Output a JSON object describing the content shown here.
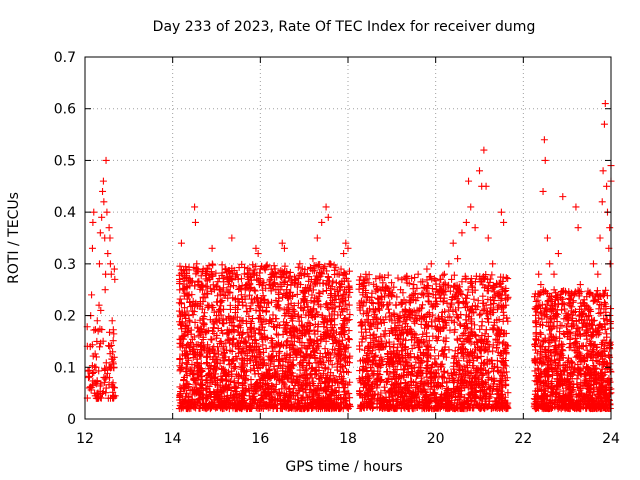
{
  "chart_data": {
    "type": "scatter",
    "title": "Day 233 of 2023, Rate Of TEC Index for receiver dumg",
    "xlabel": "GPS time / hours",
    "ylabel": "ROTI / TECUs",
    "xlim": [
      12,
      24
    ],
    "ylim": [
      0,
      0.7
    ],
    "xticks": [
      "12",
      "14",
      "16",
      "18",
      "20",
      "22",
      "24"
    ],
    "xtick_values": [
      12,
      14,
      16,
      18,
      20,
      22,
      24
    ],
    "yticks": [
      "0",
      "0.1",
      "0.2",
      "0.3",
      "0.4",
      "0.5",
      "0.6",
      "0.7"
    ],
    "ytick_values": [
      0,
      0.1,
      0.2,
      0.3,
      0.4,
      0.5,
      0.6,
      0.7
    ],
    "grid": true,
    "legend": "none",
    "marker": "plus",
    "color": "#ff0000",
    "series": [
      {
        "values": [
          [
            12.08,
            0.08
          ],
          [
            12.1,
            0.06
          ],
          [
            12.12,
            0.14
          ],
          [
            12.13,
            0.2
          ],
          [
            12.15,
            0.24
          ],
          [
            12.17,
            0.33
          ],
          [
            12.18,
            0.38
          ],
          [
            12.2,
            0.4
          ],
          [
            12.22,
            0.05
          ],
          [
            12.23,
            0.07
          ],
          [
            12.25,
            0.1
          ],
          [
            12.27,
            0.15
          ],
          [
            12.28,
            0.19
          ],
          [
            12.3,
            0.17
          ],
          [
            12.32,
            0.22
          ],
          [
            12.33,
            0.3
          ],
          [
            12.35,
            0.36
          ],
          [
            12.38,
            0.39
          ],
          [
            12.4,
            0.44
          ],
          [
            12.42,
            0.46
          ],
          [
            12.43,
            0.42
          ],
          [
            12.45,
            0.35
          ],
          [
            12.47,
            0.28
          ],
          [
            12.48,
            0.5
          ],
          [
            12.5,
            0.4
          ],
          [
            12.52,
            0.32
          ],
          [
            12.55,
            0.37
          ],
          [
            12.57,
            0.35
          ],
          [
            12.58,
            0.3
          ],
          [
            12.6,
            0.28
          ],
          [
            12.62,
            0.19
          ],
          [
            12.63,
            0.13
          ],
          [
            12.65,
            0.1
          ],
          [
            12.67,
            0.29
          ],
          [
            12.68,
            0.27
          ],
          [
            12.2,
            0.09
          ],
          [
            12.26,
            0.12
          ],
          [
            12.36,
            0.21
          ],
          [
            12.46,
            0.25
          ],
          [
            12.56,
            0.08
          ],
          [
            12.64,
            0.07
          ],
          [
            14.2,
            0.34
          ],
          [
            14.25,
            0.25
          ],
          [
            14.3,
            0.2
          ],
          [
            14.35,
            0.17
          ],
          [
            14.4,
            0.13
          ],
          [
            14.45,
            0.22
          ],
          [
            14.5,
            0.41
          ],
          [
            14.52,
            0.38
          ],
          [
            14.55,
            0.3
          ],
          [
            14.6,
            0.26
          ],
          [
            14.7,
            0.18
          ],
          [
            14.8,
            0.22
          ],
          [
            14.85,
            0.28
          ],
          [
            14.9,
            0.33
          ],
          [
            14.95,
            0.25
          ],
          [
            15.0,
            0.2
          ],
          [
            15.1,
            0.15
          ],
          [
            15.2,
            0.12
          ],
          [
            15.35,
            0.35
          ],
          [
            15.4,
            0.18
          ],
          [
            15.5,
            0.14
          ],
          [
            15.6,
            0.22
          ],
          [
            15.7,
            0.26
          ],
          [
            15.8,
            0.17
          ],
          [
            15.9,
            0.33
          ],
          [
            15.95,
            0.32
          ],
          [
            16.0,
            0.2
          ],
          [
            16.1,
            0.16
          ],
          [
            16.2,
            0.26
          ],
          [
            16.3,
            0.28
          ],
          [
            16.4,
            0.22
          ],
          [
            16.5,
            0.34
          ],
          [
            16.55,
            0.33
          ],
          [
            16.6,
            0.25
          ],
          [
            16.7,
            0.2
          ],
          [
            16.8,
            0.27
          ],
          [
            16.9,
            0.3
          ],
          [
            17.0,
            0.23
          ],
          [
            17.1,
            0.2
          ],
          [
            17.2,
            0.31
          ],
          [
            17.3,
            0.35
          ],
          [
            17.4,
            0.38
          ],
          [
            17.5,
            0.41
          ],
          [
            17.55,
            0.39
          ],
          [
            17.6,
            0.3
          ],
          [
            17.7,
            0.25
          ],
          [
            17.8,
            0.28
          ],
          [
            17.9,
            0.32
          ],
          [
            17.95,
            0.34
          ],
          [
            18.0,
            0.33
          ],
          [
            18.3,
            0.18
          ],
          [
            18.35,
            0.16
          ],
          [
            18.4,
            0.11
          ],
          [
            18.6,
            0.12
          ],
          [
            18.8,
            0.14
          ],
          [
            19.0,
            0.19
          ],
          [
            19.1,
            0.22
          ],
          [
            19.2,
            0.25
          ],
          [
            19.4,
            0.21
          ],
          [
            19.5,
            0.26
          ],
          [
            19.6,
            0.28
          ],
          [
            19.8,
            0.29
          ],
          [
            19.9,
            0.3
          ],
          [
            20.0,
            0.24
          ],
          [
            20.1,
            0.27
          ],
          [
            20.2,
            0.28
          ],
          [
            20.3,
            0.3
          ],
          [
            20.4,
            0.34
          ],
          [
            20.5,
            0.31
          ],
          [
            20.6,
            0.36
          ],
          [
            20.7,
            0.38
          ],
          [
            20.75,
            0.46
          ],
          [
            20.8,
            0.41
          ],
          [
            20.9,
            0.37
          ],
          [
            21.0,
            0.48
          ],
          [
            21.05,
            0.45
          ],
          [
            21.1,
            0.52
          ],
          [
            21.15,
            0.45
          ],
          [
            21.2,
            0.35
          ],
          [
            21.3,
            0.3
          ],
          [
            21.4,
            0.26
          ],
          [
            21.5,
            0.4
          ],
          [
            21.55,
            0.38
          ],
          [
            21.6,
            0.22
          ],
          [
            22.35,
            0.28
          ],
          [
            22.4,
            0.26
          ],
          [
            22.45,
            0.44
          ],
          [
            22.5,
            0.5
          ],
          [
            22.48,
            0.54
          ],
          [
            22.55,
            0.35
          ],
          [
            22.6,
            0.3
          ],
          [
            22.7,
            0.28
          ],
          [
            22.8,
            0.32
          ],
          [
            22.9,
            0.43
          ],
          [
            23.0,
            0.2
          ],
          [
            23.1,
            0.18
          ],
          [
            23.2,
            0.41
          ],
          [
            23.25,
            0.37
          ],
          [
            23.3,
            0.26
          ],
          [
            23.4,
            0.22
          ],
          [
            23.5,
            0.2
          ],
          [
            23.6,
            0.3
          ],
          [
            23.7,
            0.28
          ],
          [
            23.75,
            0.35
          ],
          [
            23.8,
            0.42
          ],
          [
            23.82,
            0.48
          ],
          [
            23.85,
            0.57
          ],
          [
            23.87,
            0.61
          ],
          [
            23.9,
            0.45
          ],
          [
            23.92,
            0.4
          ],
          [
            23.95,
            0.33
          ],
          [
            23.97,
            0.37
          ],
          [
            24.0,
            0.46
          ],
          [
            24.0,
            0.49
          ],
          [
            23.98,
            0.3
          ]
        ]
      }
    ],
    "dense_band": {
      "segments": [
        {
          "x": [
            14.15,
            18.05
          ],
          "y_min": 0.02,
          "y_peak": 0.3,
          "count": 2300
        },
        {
          "x": [
            18.25,
            21.65
          ],
          "y_min": 0.02,
          "y_peak": 0.28,
          "count": 1800
        },
        {
          "x": [
            22.25,
            24.0
          ],
          "y_min": 0.02,
          "y_peak": 0.25,
          "count": 1100
        }
      ],
      "early_segment": {
        "x": [
          12.05,
          12.7
        ],
        "y_min": 0.04,
        "y_peak": 0.18,
        "count": 90
      }
    }
  }
}
